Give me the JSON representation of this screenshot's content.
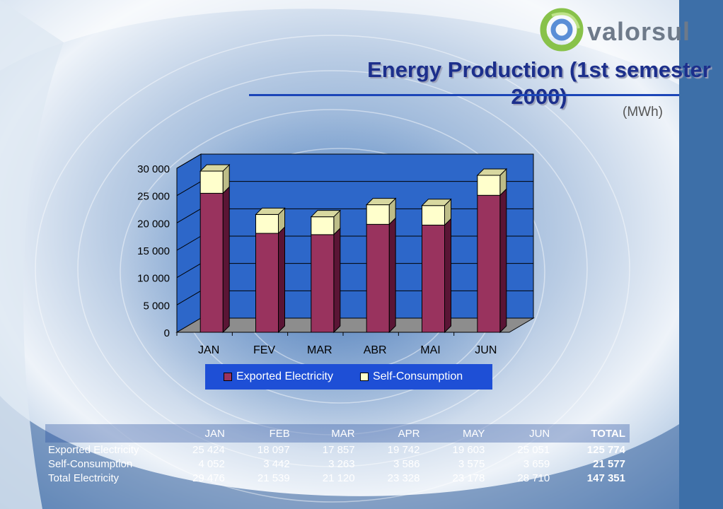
{
  "logo": {
    "text": "valorsul"
  },
  "title": "Energy Production (1st semester 2000)",
  "units": "(MWh)",
  "chart_data": {
    "type": "bar",
    "stacked": true,
    "categories": [
      "JAN",
      "FEV",
      "MAR",
      "ABR",
      "MAI",
      "JUN"
    ],
    "series": [
      {
        "name": "Exported Electricity",
        "values": [
          25424,
          18097,
          17857,
          19742,
          19603,
          25051
        ],
        "color": "#99335e"
      },
      {
        "name": "Self-Consumption",
        "values": [
          4052,
          3442,
          3263,
          3586,
          3575,
          3659
        ],
        "color": "#ffffcc"
      }
    ],
    "yticks": [
      "0",
      "5 000",
      "10 000",
      "15 000",
      "20 000",
      "25 000",
      "30 000"
    ],
    "ylim": [
      0,
      30000
    ],
    "grid": true,
    "legend": "bottom"
  },
  "table": {
    "headers": [
      "",
      "JAN",
      "FEB",
      "MAR",
      "APR",
      "MAY",
      "JUN",
      "TOTAL"
    ],
    "rows": [
      [
        "Exported Electricity",
        "25 424",
        "18 097",
        "17 857",
        "19 742",
        "19 603",
        "25 051",
        "125 774"
      ],
      [
        "Self-Consumption",
        "4 052",
        "3 442",
        "3 263",
        "3 586",
        "3 575",
        "3 659",
        "21 577"
      ],
      [
        "Total Electricity",
        "29 476",
        "21 539",
        "21 120",
        "23 328",
        "23 178",
        "28 710",
        "147 351"
      ]
    ]
  }
}
